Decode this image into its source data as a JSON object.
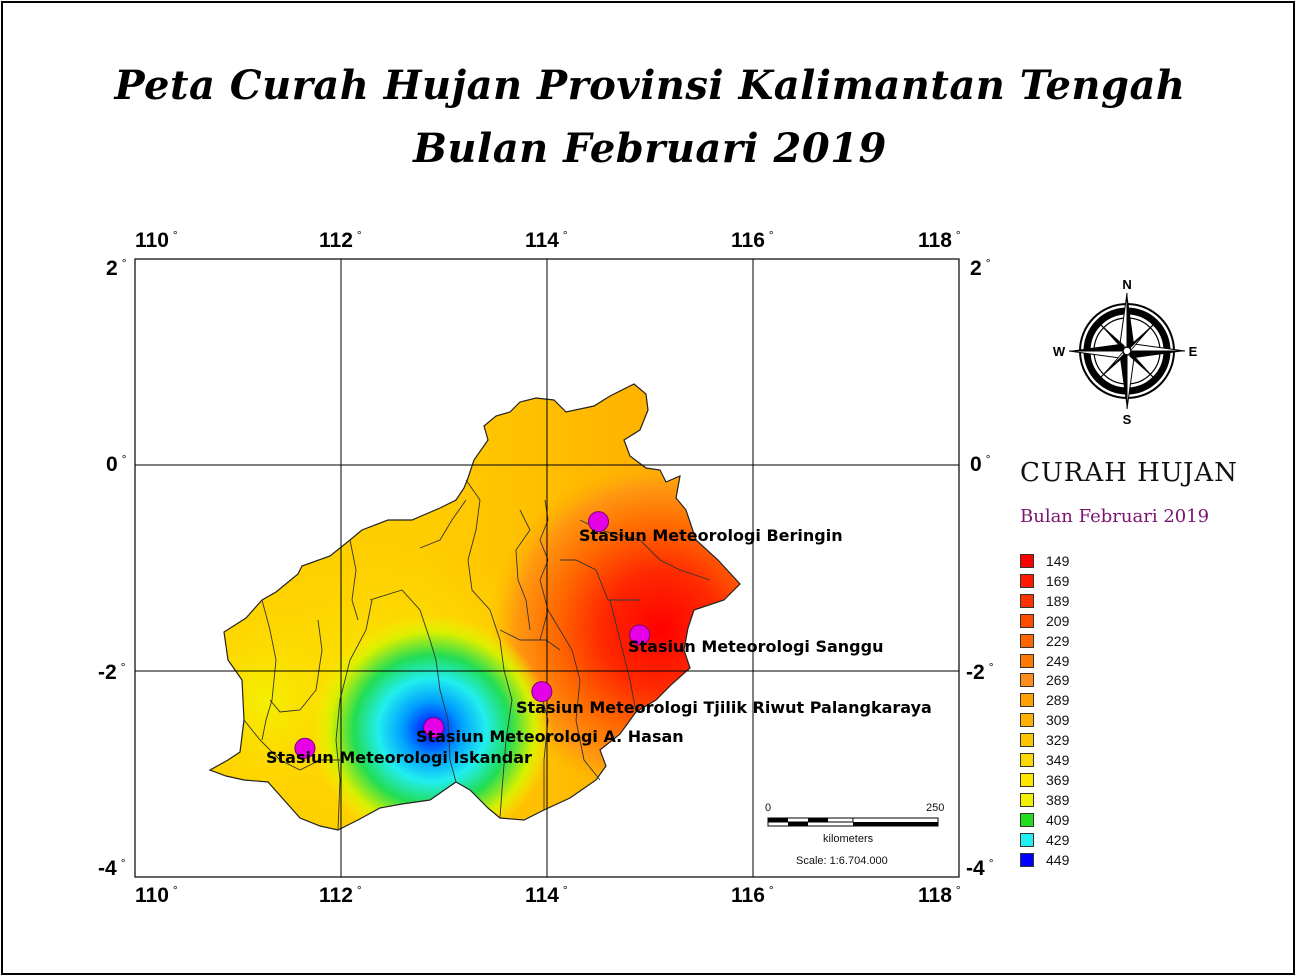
{
  "title": {
    "line1": "Peta Curah Hujan Provinsi Kalimantan Tengah",
    "line2": "Bulan Februari 2019"
  },
  "axes": {
    "lon_labels": [
      "110",
      "112",
      "114",
      "116",
      "118"
    ],
    "lat_labels": [
      "2",
      "0",
      "-2",
      "-4"
    ],
    "degree_symbol": "°"
  },
  "compass": {
    "n": "N",
    "s": "S",
    "e": "E",
    "w": "W"
  },
  "stations": [
    {
      "name": "Stasiun Meteorologi Beringin",
      "lon": 114.5,
      "lat": -0.55
    },
    {
      "name": "Stasiun Meteorologi Sanggu",
      "lon": 114.9,
      "lat": -1.65
    },
    {
      "name": "Stasiun Meteorologi  Tjilik Riwut Palangkaraya",
      "lon": 113.95,
      "lat": -2.2
    },
    {
      "name": "Stasiun Meteorologi A. Hasan",
      "lon": 112.9,
      "lat": -2.55
    },
    {
      "name": "Stasiun Meteorologi Iskandar",
      "lon": 111.65,
      "lat": -2.75
    }
  ],
  "legend": {
    "title": "CURAH HUJAN",
    "subtitle": "Bulan Februari 2019",
    "items": [
      {
        "value": "149",
        "color": "#ff0000"
      },
      {
        "value": "169",
        "color": "#ff1a00"
      },
      {
        "value": "189",
        "color": "#ff3300"
      },
      {
        "value": "209",
        "color": "#ff4d00"
      },
      {
        "value": "229",
        "color": "#ff6600"
      },
      {
        "value": "249",
        "color": "#ff7a00"
      },
      {
        "value": "269",
        "color": "#ff8c1a"
      },
      {
        "value": "289",
        "color": "#ffa000"
      },
      {
        "value": "309",
        "color": "#ffb000"
      },
      {
        "value": "329",
        "color": "#ffc400"
      },
      {
        "value": "349",
        "color": "#ffd800"
      },
      {
        "value": "369",
        "color": "#ffe800"
      },
      {
        "value": "389",
        "color": "#f2f200"
      },
      {
        "value": "409",
        "color": "#22dd22"
      },
      {
        "value": "429",
        "color": "#22eeee"
      },
      {
        "value": "449",
        "color": "#0000ff"
      }
    ]
  },
  "scalebar": {
    "start": "0",
    "end": "250",
    "unit": "kilometers",
    "scale_text": "Scale: 1:6.704.000"
  }
}
